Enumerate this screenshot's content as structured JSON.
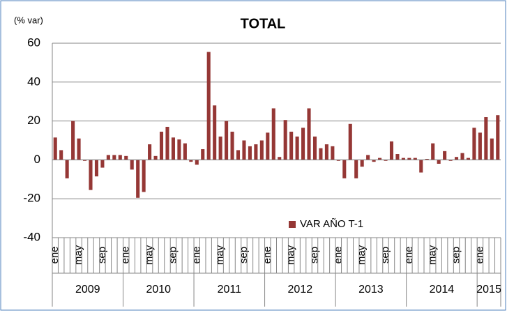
{
  "chart_data": {
    "type": "bar",
    "title": "TOTAL",
    "y_label": "(% var)",
    "categories": [
      "ene",
      null,
      null,
      null,
      "may",
      null,
      null,
      null,
      "sep",
      null,
      null,
      null,
      "ene",
      null,
      null,
      null,
      "may",
      null,
      null,
      null,
      "sep",
      null,
      null,
      null,
      "ene",
      null,
      null,
      null,
      "may",
      null,
      null,
      null,
      "sep",
      null,
      null,
      null,
      "ene",
      null,
      null,
      null,
      "may",
      null,
      null,
      null,
      "sep",
      null,
      null,
      null,
      "ene",
      null,
      null,
      null,
      "may",
      null,
      null,
      null,
      "sep",
      null,
      null,
      null,
      "ene",
      null,
      null,
      null,
      "may",
      null,
      null,
      null,
      "sep",
      null,
      null,
      null,
      "ene",
      null,
      null,
      null
    ],
    "years": [
      "2009",
      "2010",
      "2011",
      "2012",
      "2013",
      "2014",
      "2015"
    ],
    "series": [
      {
        "name": "VAR AÑO T-1",
        "color": "#953735",
        "values": [
          11.5,
          5,
          -9.5,
          20,
          11,
          -0.5,
          -15.5,
          -8.5,
          -4,
          2.5,
          2.5,
          2.5,
          2,
          -5,
          -19.5,
          -16.5,
          8,
          2,
          14.5,
          17,
          11.5,
          10.5,
          8.5,
          -1,
          -2.5,
          5.5,
          55.5,
          28,
          12,
          20,
          14.5,
          5,
          10,
          7,
          8,
          10,
          14,
          26.5,
          1.5,
          20.5,
          14.5,
          12,
          16.5,
          26.5,
          12,
          6,
          8,
          7,
          -0.5,
          -9.5,
          18.5,
          -9.5,
          -3.5,
          2.5,
          -1,
          1,
          -0.5,
          9.5,
          3,
          1,
          1,
          1,
          -6.5,
          0.5,
          8.5,
          -2,
          4.5,
          -0.5,
          1.5,
          3.5,
          1,
          16.5,
          14,
          22,
          11,
          23
        ]
      }
    ],
    "ylim": [
      -40,
      60
    ],
    "yticks": [
      -40,
      -20,
      0,
      20,
      40,
      60
    ],
    "grid": true,
    "legend": "bottom-right"
  }
}
